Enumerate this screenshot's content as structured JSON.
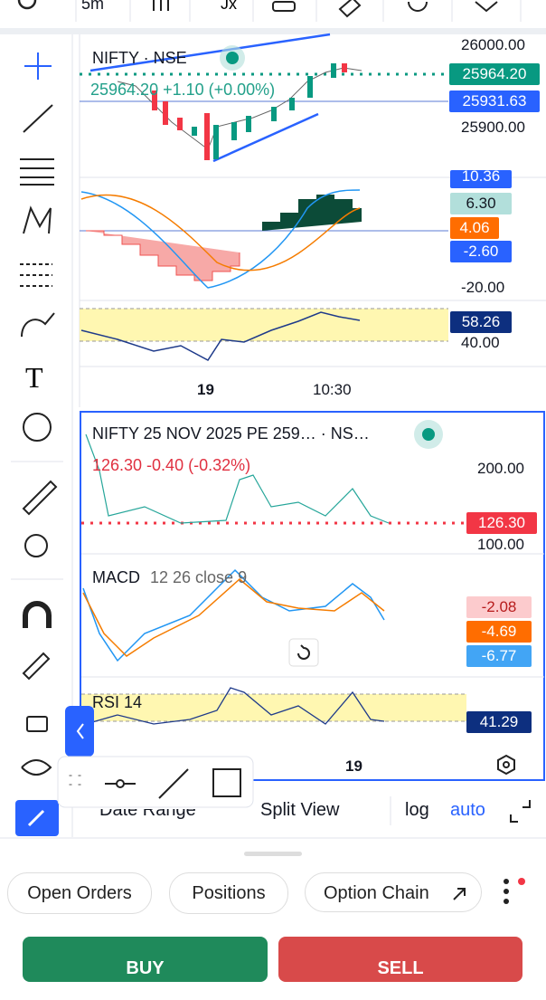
{
  "toolbar": {
    "interval": "5m"
  },
  "main_chart": {
    "symbol": "NIFTY · NSE",
    "quote": "25964.20 +1.10 (+0.00%)",
    "price_axis": [
      "26000.00",
      "25900.00"
    ],
    "last_price_label": "25964.20",
    "crosshair_label": "25931.63",
    "macd_labels": [
      "10.36",
      "6.30",
      "4.06",
      "-2.60"
    ],
    "macd_axis": "-20.00",
    "rsi_label": "58.26",
    "rsi_axis": "40.00",
    "time_axis": [
      "19",
      "10:30"
    ]
  },
  "option_chart": {
    "symbol": "NIFTY 25 NOV 2025 PE 259… · NS…",
    "quote": "126.30 -0.40 (-0.32%)",
    "price_axis": [
      "200.00",
      "100.00"
    ],
    "last_price_label": "126.30",
    "macd_title": "MACD",
    "macd_params": "12 26 close 9",
    "macd_labels": [
      "-2.08",
      "-4.69",
      "-6.77"
    ],
    "rsi_title": "RSI 14",
    "rsi_label": "41.29",
    "time_axis": "19"
  },
  "bottom_bar": {
    "date_range": "Date Range",
    "split_view": "Split View",
    "log": "log",
    "auto": "auto"
  },
  "tabs": [
    "Open Orders",
    "Positions",
    "Option Chain"
  ],
  "actions": {
    "buy": "BUY",
    "sell": "SELL"
  }
}
